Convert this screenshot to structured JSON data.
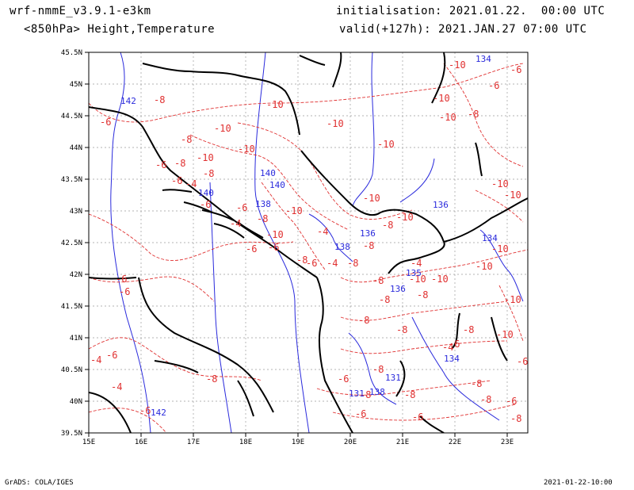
{
  "header": {
    "model": "wrf-nmmE_v3.9.1-e3km",
    "level_fields": "<850hPa> Height,Temperature",
    "init": "initialisation: 2021.01.22.  00:00 UTC",
    "valid": "valid(+127h): 2021.JAN.27 07:00 UTC"
  },
  "footer": {
    "credit": "GrADS: COLA/IGES",
    "timestamp": "2021-01-22-10:00"
  },
  "axes": {
    "lon_labels": [
      "15E",
      "16E",
      "17E",
      "18E",
      "19E",
      "20E",
      "21E",
      "22E",
      "23E"
    ],
    "lat_labels": [
      "39.5N",
      "40N",
      "40.5N",
      "41N",
      "41.5N",
      "42N",
      "42.5N",
      "43N",
      "43.5N",
      "44N",
      "44.5N",
      "45N",
      "45.5N"
    ]
  },
  "colors": {
    "temperature": "#e03030",
    "height": "#2a2adc",
    "coast": "#000000",
    "grid": "#9a9a9a"
  },
  "temperature_labels": [
    "-6",
    "-8",
    "-10",
    "-8",
    "-10",
    "-10",
    "-10",
    "-10",
    "-6",
    "-8",
    "-10",
    "-6",
    "-8",
    "-4",
    "-6",
    "-6",
    "-4",
    "-6",
    "-6",
    "-8",
    "-10",
    "-10",
    "-8",
    "-10",
    "-10",
    "-10",
    "-10",
    "-8",
    "-10",
    "-10",
    "-6",
    "-6",
    "-10",
    "-10",
    "-10",
    "-4",
    "-8",
    "-8",
    "-8",
    "-6",
    "-4",
    "-6",
    "-6",
    "-4",
    "-6",
    "-8",
    "-6",
    "-8",
    "-8",
    "-10",
    "-4",
    "-4",
    "-6",
    "-8",
    "-8",
    "-8",
    "-8",
    "-10",
    "-8",
    "-10",
    "-10",
    "-6",
    "-8",
    "-6",
    "-4",
    "-6",
    "-6",
    "-8",
    "-8",
    "-8",
    "-6",
    "-8"
  ],
  "height_labels": [
    "142",
    "140",
    "140",
    "140",
    "138",
    "138",
    "138",
    "136",
    "136",
    "136",
    "134",
    "135",
    "134",
    "134",
    "131",
    "131",
    "142"
  ]
}
